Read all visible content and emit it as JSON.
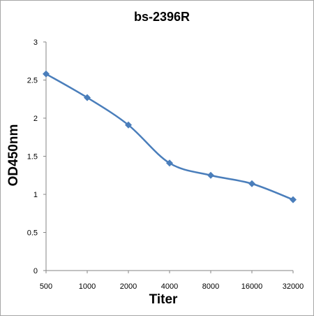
{
  "chart_data": {
    "type": "line",
    "title": "bs-2396R",
    "xlabel": "Titer",
    "ylabel": "OD450nm",
    "categories": [
      "500",
      "1000",
      "2000",
      "4000",
      "8000",
      "16000",
      "32000"
    ],
    "series": [
      {
        "values": [
          2.58,
          2.27,
          1.91,
          1.41,
          1.25,
          1.14,
          0.93
        ]
      }
    ],
    "ylim": [
      0,
      3
    ],
    "yticks": [
      "0",
      "0.5",
      "1",
      "1.5",
      "2",
      "2.5",
      "3"
    ],
    "grid": false,
    "legend": "none",
    "line_color": "#4a7ebb",
    "marker": "diamond"
  }
}
